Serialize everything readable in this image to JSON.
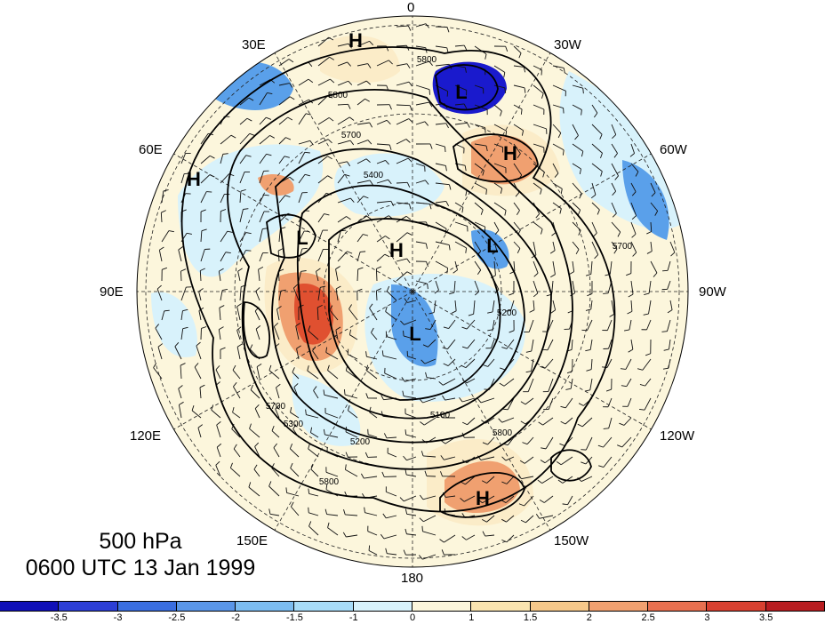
{
  "map": {
    "longitude_labels": [
      "0",
      "30W",
      "60W",
      "90W",
      "120W",
      "150W",
      "180",
      "150E",
      "120E",
      "90E",
      "60E",
      "30E"
    ],
    "systems": [
      {
        "type": "H"
      },
      {
        "type": "L"
      },
      {
        "type": "H"
      },
      {
        "type": "H"
      },
      {
        "type": "L"
      },
      {
        "type": "H"
      },
      {
        "type": "L"
      },
      {
        "type": "L"
      },
      {
        "type": "H"
      }
    ],
    "contour_labels": [
      "5800",
      "5800",
      "5700",
      "5400",
      "5200",
      "5100",
      "5300",
      "5200",
      "5700",
      "5800",
      "5800",
      "5700"
    ],
    "anomaly_colors": {
      "strong_negative": "#1a1acd",
      "negative": "#5aa0ea",
      "weak_negative": "#d8f2fb",
      "weak_positive": "#fbecc8",
      "positive": "#f0a070",
      "strong_positive": "#e05030"
    }
  },
  "caption": {
    "level": "500 hPa",
    "time": "0600 UTC 13 Jan 1999"
  },
  "colorbar": {
    "colors": [
      "#1010b8",
      "#2c3ed6",
      "#3a6ee0",
      "#5a96e8",
      "#7cbcf0",
      "#a8dcf8",
      "#d8f2fb",
      "#fcf6dc",
      "#fae4b0",
      "#f6c88a",
      "#f0a070",
      "#e87050",
      "#d84030",
      "#b81c20"
    ],
    "tick_labels": [
      "-3.5",
      "-3",
      "-2.5",
      "-2",
      "-1.5",
      "-1",
      "0",
      "1",
      "1.5",
      "2",
      "2.5",
      "3",
      "3.5"
    ]
  }
}
